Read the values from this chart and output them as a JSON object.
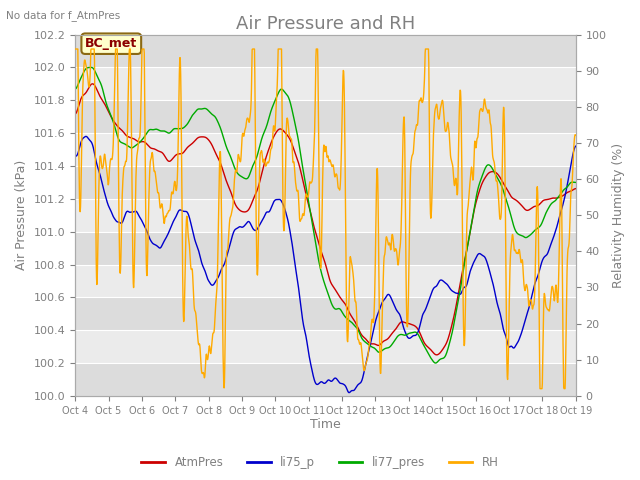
{
  "title": "Air Pressure and RH",
  "subtitle": "No data for f_AtmPres",
  "xlabel": "Time",
  "ylabel_left": "Air Pressure (kPa)",
  "ylabel_right": "Relativity Humidity (%)",
  "annotation": "BC_met",
  "ylim_left": [
    100.0,
    102.2
  ],
  "ylim_right": [
    0,
    100
  ],
  "yticks_left": [
    100.0,
    100.2,
    100.4,
    100.6,
    100.8,
    101.0,
    101.2,
    101.4,
    101.6,
    101.8,
    102.0,
    102.2
  ],
  "yticks_right": [
    0,
    10,
    20,
    30,
    40,
    50,
    60,
    70,
    80,
    90,
    100
  ],
  "xtick_labels": [
    "Oct 4",
    "Oct 5",
    "Oct 6",
    "Oct 7",
    "Oct 8",
    "Oct 9",
    "Oct 10",
    "Oct 11",
    "Oct 12",
    "Oct 13",
    "Oct 14",
    "Oct 15",
    "Oct 16",
    "Oct 17",
    "Oct 18",
    "Oct 19"
  ],
  "colors": {
    "AtmPres": "#cc0000",
    "li75_p": "#0000cc",
    "li77_pres": "#00aa00",
    "RH": "#ffaa00"
  },
  "legend_labels": [
    "AtmPres",
    "li75_p",
    "li77_pres",
    "RH"
  ],
  "band_colors": [
    "#dcdcdc",
    "#ebebeb"
  ],
  "title_color": "#808080",
  "label_color": "#808080",
  "title_fontsize": 13,
  "label_fontsize": 9,
  "tick_fontsize": 8
}
